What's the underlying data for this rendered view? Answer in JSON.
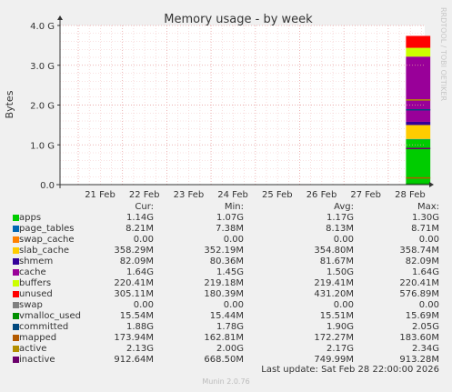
{
  "chart_data": {
    "type": "area",
    "title": "Memory usage - by week",
    "ylabel": "Bytes",
    "watermark": "RRDTOOL / TOBI OETIKER",
    "yticks": [
      {
        "value": 0,
        "label": "0.0"
      },
      {
        "value": 1,
        "label": "1.0 G"
      },
      {
        "value": 2,
        "label": "2.0 G"
      },
      {
        "value": 3,
        "label": "3.0 G"
      },
      {
        "value": 4,
        "label": "4.0 G"
      }
    ],
    "ylim": [
      0,
      4.0
    ],
    "y_unit": "GB",
    "x_categories": [
      "21 Feb",
      "22 Feb",
      "23 Feb",
      "24 Feb",
      "25 Feb",
      "26 Feb",
      "27 Feb",
      "28 Feb"
    ],
    "data_span": {
      "start": "28 Feb",
      "end": "28 Feb 22:00"
    },
    "stack_order": [
      "apps",
      "page_tables",
      "swap_cache",
      "slab_cache",
      "shmem",
      "cache",
      "buffers",
      "unused",
      "swap"
    ],
    "line_series": [
      "vmalloc_used",
      "committed",
      "mapped",
      "active",
      "inactive"
    ],
    "columns": [
      "Cur:",
      "Min:",
      "Avg:",
      "Max:"
    ],
    "series": [
      {
        "name": "apps",
        "color": "#00cc00",
        "cur": "1.14G",
        "min": "1.07G",
        "avg": "1.17G",
        "max": "1.30G",
        "value_gb": 1.14
      },
      {
        "name": "page_tables",
        "color": "#0066b3",
        "cur": "8.21M",
        "min": "7.38M",
        "avg": "8.13M",
        "max": "8.71M",
        "value_gb": 0.008
      },
      {
        "name": "swap_cache",
        "color": "#ff8000",
        "cur": "0.00",
        "min": "0.00",
        "avg": "0.00",
        "max": "0.00",
        "value_gb": 0
      },
      {
        "name": "slab_cache",
        "color": "#ffcc00",
        "cur": "358.29M",
        "min": "352.19M",
        "avg": "354.80M",
        "max": "358.74M",
        "value_gb": 0.35
      },
      {
        "name": "shmem",
        "color": "#330099",
        "cur": "82.09M",
        "min": "80.36M",
        "avg": "81.67M",
        "max": "82.09M",
        "value_gb": 0.08
      },
      {
        "name": "cache",
        "color": "#990099",
        "cur": "1.64G",
        "min": "1.45G",
        "avg": "1.50G",
        "max": "1.64G",
        "value_gb": 1.64
      },
      {
        "name": "buffers",
        "color": "#ccff00",
        "cur": "220.41M",
        "min": "219.18M",
        "avg": "219.41M",
        "max": "220.41M",
        "value_gb": 0.22
      },
      {
        "name": "unused",
        "color": "#ff0000",
        "cur": "305.11M",
        "min": "180.39M",
        "avg": "431.20M",
        "max": "576.89M",
        "value_gb": 0.3
      },
      {
        "name": "swap",
        "color": "#808080",
        "cur": "0.00",
        "min": "0.00",
        "avg": "0.00",
        "max": "0.00",
        "value_gb": 0
      },
      {
        "name": "vmalloc_used",
        "color": "#008f00",
        "cur": "15.54M",
        "min": "15.44M",
        "avg": "15.51M",
        "max": "15.69M",
        "value_gb": 0.015
      },
      {
        "name": "committed",
        "color": "#00487d",
        "cur": "1.88G",
        "min": "1.78G",
        "avg": "1.90G",
        "max": "2.05G",
        "value_gb": 1.88
      },
      {
        "name": "mapped",
        "color": "#b35a00",
        "cur": "173.94M",
        "min": "162.81M",
        "avg": "172.27M",
        "max": "183.60M",
        "value_gb": 0.17
      },
      {
        "name": "active",
        "color": "#b38f00",
        "cur": "2.13G",
        "min": "2.00G",
        "avg": "2.17G",
        "max": "2.34G",
        "value_gb": 2.13
      },
      {
        "name": "inactive",
        "color": "#6b006b",
        "cur": "912.64M",
        "min": "668.50M",
        "avg": "749.99M",
        "max": "913.28M",
        "value_gb": 0.91
      }
    ]
  },
  "footer": {
    "last_update": "Last update: Sat Feb 28 22:00:00 2026",
    "munin_version": "Munin 2.0.76"
  }
}
